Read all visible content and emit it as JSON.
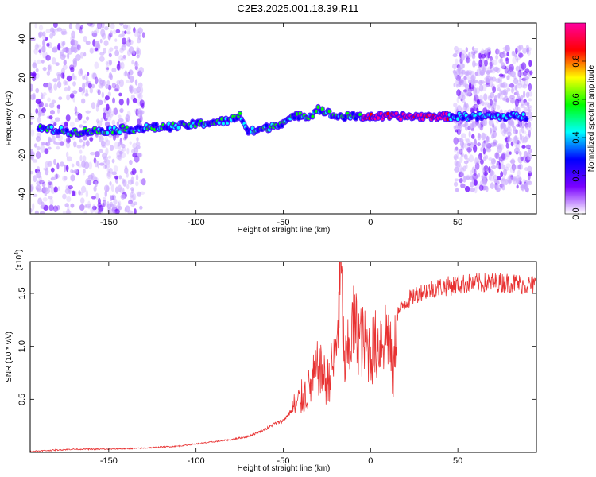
{
  "figure": {
    "title": "C2E3.2025.001.18.39.R11"
  },
  "chart_data": [
    {
      "type": "heatmap",
      "xlabel": "Height of straight line (km)",
      "ylabel": "Frequency (Hz)",
      "xlim": [
        -195,
        95
      ],
      "ylim": [
        -50,
        48
      ],
      "xticks": [
        -150,
        -100,
        -50,
        0,
        50
      ],
      "yticks": [
        -40,
        -20,
        0,
        20,
        40
      ],
      "colorbar": {
        "label": "Normalized spectral amplitude",
        "range": [
          0,
          1
        ],
        "ticks": [
          0.0,
          0.2,
          0.4,
          0.6,
          0.8
        ],
        "colors": [
          "#ffffff",
          "#7a00ff",
          "#0000ff",
          "#00ffff",
          "#00ff00",
          "#ffff00",
          "#ff0000",
          "#ff00a0"
        ]
      },
      "ridge": {
        "x": [
          -190,
          -170,
          -150,
          -130,
          -110,
          -90,
          -80,
          -75,
          -70,
          -60,
          -50,
          -45,
          -40,
          -35,
          -30,
          -25,
          -20,
          -10,
          0,
          10,
          20,
          30,
          40,
          45,
          50,
          60,
          70,
          80,
          90
        ],
        "y": [
          -6,
          -8,
          -7,
          -6,
          -5,
          -3,
          -2,
          1,
          -8,
          -6,
          -3,
          -1,
          1,
          0,
          4,
          2,
          0,
          0,
          0,
          0,
          0,
          0,
          0,
          0,
          0,
          0,
          0,
          0,
          0
        ]
      },
      "scattered_regions": [
        {
          "x_from": -195,
          "x_to": -130,
          "y_from": -50,
          "y_to": 48
        },
        {
          "x_from": 48,
          "x_to": 92,
          "y_from": -38,
          "y_to": 36
        }
      ]
    },
    {
      "type": "line",
      "xlabel": "Height of straight line (km)",
      "ylabel": "SNR (10 * v/v)",
      "exponent_label": "(x10",
      "exponent_sup": "4",
      "exponent_close": ")",
      "xlim": [
        -195,
        95
      ],
      "ylim": [
        0,
        1.8
      ],
      "xticks": [
        -150,
        -100,
        -50,
        0,
        50
      ],
      "yticks": [
        0.5,
        1.0,
        1.5
      ],
      "ytick_labels": [
        "0.5",
        "1.0",
        "1.5"
      ],
      "color": "#e83232",
      "series": [
        {
          "x": [
            -195,
            -170,
            -150,
            -130,
            -110,
            -100,
            -90,
            -80,
            -70,
            -60,
            -55,
            -50,
            -45,
            -40,
            -35,
            -30,
            -25,
            -20,
            -17,
            -15,
            -12,
            -10,
            -5,
            0,
            5,
            10,
            13,
            15,
            20,
            25,
            30,
            40,
            50,
            60,
            70,
            80,
            90,
            95
          ],
          "y": [
            0.01,
            0.03,
            0.03,
            0.04,
            0.06,
            0.08,
            0.1,
            0.12,
            0.15,
            0.22,
            0.27,
            0.3,
            0.4,
            0.5,
            0.6,
            0.8,
            0.65,
            0.9,
            1.7,
            0.8,
            1.0,
            1.2,
            1.05,
            0.95,
            1.05,
            1.15,
            0.7,
            1.3,
            1.42,
            1.48,
            1.52,
            1.56,
            1.58,
            1.6,
            1.6,
            1.6,
            1.58,
            1.58
          ]
        }
      ]
    }
  ]
}
